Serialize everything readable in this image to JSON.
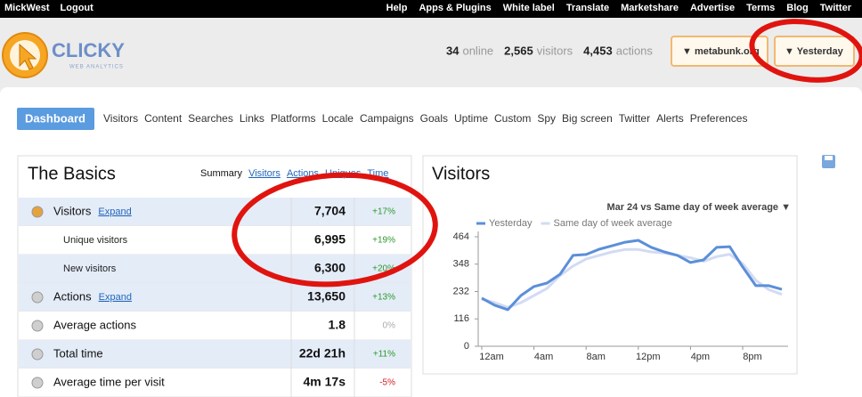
{
  "topbar": {
    "left": [
      "MickWest",
      "Logout"
    ],
    "right": [
      "Help",
      "Apps & Plugins",
      "White label",
      "Translate",
      "Marketshare",
      "Advertise",
      "Terms",
      "Blog",
      "Twitter"
    ]
  },
  "header": {
    "logo": "CLICKY",
    "logo_sub": "WEB ANALYTICS",
    "stats": [
      {
        "value": "34",
        "label": "online"
      },
      {
        "value": "2,565",
        "label": "visitors"
      },
      {
        "value": "4,453",
        "label": "actions"
      }
    ],
    "site": "▼ metabunk.org",
    "date": "▼ Yesterday"
  },
  "nav": {
    "active": "Dashboard",
    "links": [
      "Visitors",
      "Content",
      "Searches",
      "Links",
      "Platforms",
      "Locale",
      "Campaigns",
      "Goals",
      "Uptime",
      "Custom",
      "Spy",
      "Big screen",
      "Twitter",
      "Alerts",
      "Preferences"
    ]
  },
  "basics": {
    "title": "The Basics",
    "tabs": [
      "Summary",
      "Visitors",
      "Actions",
      "Uniques",
      "Time"
    ],
    "rows": [
      {
        "label": "Visitors",
        "expand": "Expand",
        "value": "7,704",
        "change": "+17%"
      },
      {
        "label": "Unique visitors",
        "value": "6,995",
        "change": "+19%"
      },
      {
        "label": "New visitors",
        "value": "6,300",
        "change": "+20%"
      },
      {
        "label": "Actions",
        "expand": "Expand",
        "value": "13,650",
        "change": "+13%"
      },
      {
        "label": "Average actions",
        "value": "1.8",
        "change": "0%"
      },
      {
        "label": "Total time",
        "value": "22d 21h",
        "change": "+11%"
      },
      {
        "label": "Average time per visit",
        "value": "4m 17s",
        "change": "-5%"
      }
    ]
  },
  "chart_data": {
    "type": "line",
    "title": "Visitors",
    "subtitle": "Mar 24 vs Same day of week average ▼",
    "categories": [
      "12am",
      null,
      null,
      null,
      "4am",
      null,
      null,
      null,
      "8am",
      null,
      null,
      null,
      "12pm",
      null,
      null,
      null,
      "4pm",
      null,
      null,
      null,
      "8pm",
      null,
      null,
      null
    ],
    "series": [
      {
        "name": "Yesterday",
        "color": "#5b8fd9",
        "values": [
          204,
          174,
          155,
          215,
          253,
          268,
          305,
          385,
          389,
          411,
          426,
          441,
          449,
          419,
          400,
          385,
          355,
          366,
          419,
          422,
          336,
          257,
          257,
          241
        ]
      },
      {
        "name": "Same day of week average",
        "color": "#d3dbf3",
        "values": [
          200,
          185,
          165,
          185,
          215,
          245,
          300,
          340,
          370,
          385,
          400,
          410,
          410,
          400,
          395,
          385,
          375,
          360,
          380,
          390,
          350,
          280,
          240,
          220
        ]
      }
    ],
    "ylim": [
      0,
      464
    ],
    "yticks": [
      0,
      116,
      232,
      348,
      464
    ]
  }
}
